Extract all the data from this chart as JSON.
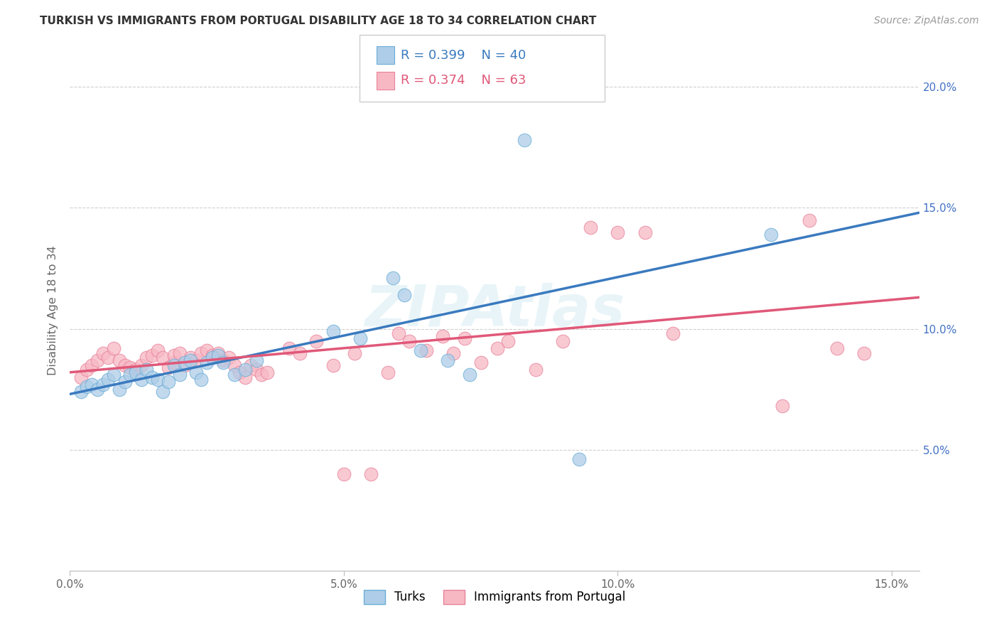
{
  "title": "TURKISH VS IMMIGRANTS FROM PORTUGAL DISABILITY AGE 18 TO 34 CORRELATION CHART",
  "source": "Source: ZipAtlas.com",
  "ylabel": "Disability Age 18 to 34",
  "xmin": 0.0,
  "xmax": 0.155,
  "ymin": 0.0,
  "ymax": 0.215,
  "xticks": [
    0.0,
    0.05,
    0.1,
    0.15
  ],
  "xtick_labels": [
    "0.0%",
    "5.0%",
    "10.0%",
    "15.0%"
  ],
  "yticks_right": [
    0.05,
    0.1,
    0.15,
    0.2
  ],
  "ytick_labels_right": [
    "5.0%",
    "10.0%",
    "15.0%",
    "20.0%"
  ],
  "R_turks": "0.399",
  "N_turks": "40",
  "R_portugal": "0.374",
  "N_portugal": "63",
  "blue_scatter_face": "#aecde8",
  "blue_scatter_edge": "#6aaed6",
  "blue_line": "#3a7abf",
  "pink_scatter_face": "#f7b8c4",
  "pink_scatter_edge": "#e8829a",
  "pink_line": "#e05878",
  "watermark": "ZIPAtlas",
  "turks_label": "Turks",
  "portugal_label": "Immigrants from Portugal",
  "blue_tick_color": "#4472c4",
  "turks_x": [
    0.002,
    0.003,
    0.004,
    0.005,
    0.006,
    0.007,
    0.008,
    0.009,
    0.01,
    0.011,
    0.012,
    0.013,
    0.014,
    0.015,
    0.016,
    0.017,
    0.018,
    0.019,
    0.02,
    0.021,
    0.022,
    0.023,
    0.024,
    0.025,
    0.026,
    0.027,
    0.028,
    0.03,
    0.032,
    0.034,
    0.048,
    0.053,
    0.059,
    0.061,
    0.064,
    0.069,
    0.073,
    0.083,
    0.093,
    0.128
  ],
  "turks_y": [
    0.074,
    0.076,
    0.077,
    0.075,
    0.077,
    0.079,
    0.081,
    0.075,
    0.078,
    0.081,
    0.082,
    0.079,
    0.083,
    0.08,
    0.079,
    0.074,
    0.078,
    0.085,
    0.081,
    0.086,
    0.087,
    0.082,
    0.079,
    0.086,
    0.088,
    0.089,
    0.086,
    0.081,
    0.083,
    0.087,
    0.099,
    0.096,
    0.121,
    0.114,
    0.091,
    0.087,
    0.081,
    0.178,
    0.046,
    0.139
  ],
  "portugal_x": [
    0.002,
    0.003,
    0.004,
    0.005,
    0.006,
    0.007,
    0.008,
    0.009,
    0.01,
    0.011,
    0.012,
    0.013,
    0.014,
    0.015,
    0.016,
    0.017,
    0.018,
    0.019,
    0.019,
    0.02,
    0.021,
    0.022,
    0.023,
    0.024,
    0.025,
    0.026,
    0.027,
    0.028,
    0.029,
    0.03,
    0.031,
    0.032,
    0.033,
    0.034,
    0.035,
    0.036,
    0.04,
    0.042,
    0.045,
    0.048,
    0.05,
    0.052,
    0.055,
    0.058,
    0.06,
    0.062,
    0.065,
    0.068,
    0.07,
    0.072,
    0.075,
    0.078,
    0.08,
    0.085,
    0.09,
    0.095,
    0.1,
    0.105,
    0.11,
    0.13,
    0.135,
    0.14,
    0.145
  ],
  "portugal_y": [
    0.08,
    0.083,
    0.085,
    0.087,
    0.09,
    0.088,
    0.092,
    0.087,
    0.085,
    0.084,
    0.083,
    0.085,
    0.088,
    0.089,
    0.091,
    0.088,
    0.084,
    0.086,
    0.089,
    0.09,
    0.085,
    0.088,
    0.087,
    0.09,
    0.091,
    0.089,
    0.09,
    0.087,
    0.088,
    0.085,
    0.082,
    0.08,
    0.085,
    0.083,
    0.081,
    0.082,
    0.092,
    0.09,
    0.095,
    0.085,
    0.04,
    0.09,
    0.04,
    0.082,
    0.098,
    0.095,
    0.091,
    0.097,
    0.09,
    0.096,
    0.086,
    0.092,
    0.095,
    0.083,
    0.095,
    0.142,
    0.14,
    0.14,
    0.098,
    0.068,
    0.145,
    0.092,
    0.09
  ],
  "trend_blue_x0": 0.0,
  "trend_blue_y0": 0.073,
  "trend_blue_x1": 0.155,
  "trend_blue_y1": 0.148,
  "trend_pink_x0": 0.0,
  "trend_pink_y0": 0.082,
  "trend_pink_x1": 0.155,
  "trend_pink_y1": 0.113
}
